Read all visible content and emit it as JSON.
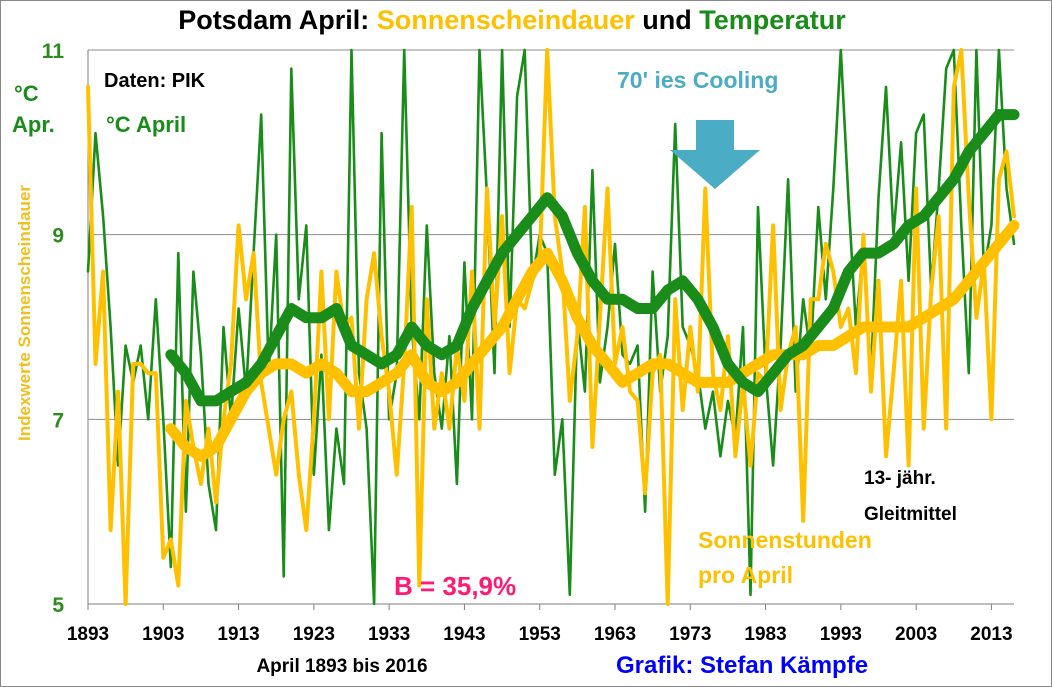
{
  "colors": {
    "temperature": "#198c19",
    "sunshine": "#ffc000",
    "cooling_text": "#4bacc6",
    "cooling_arrow": "#4bacc6",
    "b_text": "#ff1a75",
    "credit_text": "#0000ff",
    "ytick": "#2e8b1e",
    "ylabel": "#f0c01e"
  },
  "chart_data": {
    "type": "line",
    "title_parts": [
      {
        "text": "Potsdam April: ",
        "color": "#000000"
      },
      {
        "text": "Sonnenscheindauer",
        "color": "#ffc000"
      },
      {
        "text": " und ",
        "color": "#000000"
      },
      {
        "text": "Temperatur",
        "color": "#198c19"
      }
    ],
    "ylabel": "Indexwerte Sonnenscheindauer",
    "xlabel": "April 1893 bis 2016",
    "xlim": [
      1893,
      2016
    ],
    "ylim": [
      5,
      11
    ],
    "xticks": [
      1893,
      1903,
      1913,
      1923,
      1933,
      1943,
      1953,
      1963,
      1973,
      1983,
      1993,
      2003,
      2013
    ],
    "yticks": [
      5,
      7,
      9,
      11
    ],
    "grid": true,
    "annotations": {
      "data_source": "Daten: PIK",
      "unit_short": "°C\nApr.",
      "temp_label": "°C April",
      "cooling": "70' ies Cooling",
      "smoothing": "13- jähr.\nGleitmittel",
      "sunshine_label": "Sonnenstunden\npro April",
      "b_value": "B = 35,9%",
      "credit": "Grafik: Stefan Kämpfe"
    },
    "series": [
      {
        "name": "°C April",
        "kind": "raw",
        "color": "#198c19",
        "x": [
          1893,
          1894,
          1895,
          1896,
          1897,
          1898,
          1899,
          1900,
          1901,
          1902,
          1903,
          1904,
          1905,
          1906,
          1907,
          1908,
          1909,
          1910,
          1911,
          1912,
          1913,
          1914,
          1915,
          1916,
          1917,
          1918,
          1919,
          1920,
          1921,
          1922,
          1923,
          1924,
          1925,
          1926,
          1927,
          1928,
          1929,
          1930,
          1931,
          1932,
          1933,
          1934,
          1935,
          1936,
          1937,
          1938,
          1939,
          1940,
          1941,
          1942,
          1943,
          1944,
          1945,
          1946,
          1947,
          1948,
          1949,
          1950,
          1951,
          1952,
          1953,
          1954,
          1955,
          1956,
          1957,
          1958,
          1959,
          1960,
          1961,
          1962,
          1963,
          1964,
          1965,
          1966,
          1967,
          1968,
          1969,
          1970,
          1971,
          1972,
          1973,
          1974,
          1975,
          1976,
          1977,
          1978,
          1979,
          1980,
          1981,
          1982,
          1983,
          1984,
          1985,
          1986,
          1987,
          1988,
          1989,
          1990,
          1991,
          1992,
          1993,
          1994,
          1995,
          1996,
          1997,
          1998,
          1999,
          2000,
          2001,
          2002,
          2003,
          2004,
          2005,
          2006,
          2007,
          2008,
          2009,
          2010,
          2011,
          2012,
          2013,
          2014,
          2015,
          2016
        ],
        "values": [
          8.6,
          10.1,
          9.2,
          8.0,
          6.5,
          7.8,
          7.4,
          7.8,
          7.0,
          8.3,
          7.0,
          5.4,
          8.8,
          6.0,
          8.6,
          7.7,
          6.3,
          5.8,
          8.0,
          7.0,
          8.2,
          7.3,
          8.8,
          10.3,
          7.5,
          9.0,
          5.3,
          10.8,
          8.3,
          9.1,
          6.4,
          7.7,
          5.8,
          6.9,
          6.3,
          11.0,
          7.5,
          6.9,
          5.0,
          10.1,
          7.0,
          7.5,
          11.0,
          8.0,
          7.0,
          9.1,
          7.5,
          6.9,
          7.9,
          6.3,
          8.7,
          7.0,
          11.0,
          9.4,
          7.5,
          11.0,
          8.0,
          10.5,
          11.0,
          8.5,
          9.0,
          8.8,
          6.4,
          7.0,
          5.1,
          8.1,
          7.3,
          9.7,
          7.4,
          8.0,
          8.9,
          7.7,
          7.6,
          7.8,
          6.0,
          8.6,
          7.3,
          7.9,
          10.2,
          8.0,
          7.8,
          7.5,
          6.9,
          7.3,
          6.6,
          7.2,
          6.8,
          8.0,
          5.1,
          9.3,
          7.5,
          6.5,
          7.8,
          9.6,
          7.3,
          8.3,
          7.7,
          9.3,
          8.3,
          9.5,
          11.0,
          9.4,
          8.0,
          8.9,
          7.5,
          9.4,
          10.6,
          9.0,
          10.0,
          8.5,
          10.1,
          10.3,
          8.4,
          9.5,
          10.8,
          11.0,
          9.1,
          7.5,
          11.0,
          8.6,
          9.1,
          11.0,
          9.5,
          8.9
        ]
      },
      {
        "name": "Sonnenstunden pro April",
        "kind": "raw",
        "color": "#ffc000",
        "x": [
          1893,
          1894,
          1895,
          1896,
          1897,
          1898,
          1899,
          1900,
          1901,
          1902,
          1903,
          1904,
          1905,
          1906,
          1907,
          1908,
          1909,
          1910,
          1911,
          1912,
          1913,
          1914,
          1915,
          1916,
          1917,
          1918,
          1919,
          1920,
          1921,
          1922,
          1923,
          1924,
          1925,
          1926,
          1927,
          1928,
          1929,
          1930,
          1931,
          1932,
          1933,
          1934,
          1935,
          1936,
          1937,
          1938,
          1939,
          1940,
          1941,
          1942,
          1943,
          1944,
          1945,
          1946,
          1947,
          1948,
          1949,
          1950,
          1951,
          1952,
          1953,
          1954,
          1955,
          1956,
          1957,
          1958,
          1959,
          1960,
          1961,
          1962,
          1963,
          1964,
          1965,
          1966,
          1967,
          1968,
          1969,
          1970,
          1971,
          1972,
          1973,
          1974,
          1975,
          1976,
          1977,
          1978,
          1979,
          1980,
          1981,
          1982,
          1983,
          1984,
          1985,
          1986,
          1987,
          1988,
          1989,
          1990,
          1991,
          1992,
          1993,
          1994,
          1995,
          1996,
          1997,
          1998,
          1999,
          2000,
          2001,
          2002,
          2003,
          2004,
          2005,
          2006,
          2007,
          2008,
          2009,
          2010,
          2011,
          2012,
          2013,
          2014,
          2015,
          2016
        ],
        "values": [
          10.6,
          7.6,
          8.6,
          5.8,
          7.3,
          5.0,
          7.6,
          7.6,
          7.5,
          7.5,
          5.5,
          5.7,
          5.2,
          7.2,
          6.7,
          6.3,
          6.9,
          6.1,
          7.0,
          7.6,
          9.1,
          8.3,
          8.8,
          7.4,
          6.9,
          6.4,
          7.0,
          7.3,
          6.4,
          5.8,
          7.0,
          8.6,
          7.0,
          8.6,
          8.0,
          8.1,
          6.9,
          8.3,
          8.8,
          7.9,
          7.3,
          6.4,
          7.6,
          9.3,
          5.2,
          8.3,
          6.9,
          7.5,
          6.9,
          7.8,
          7.2,
          8.6,
          6.9,
          9.5,
          8.0,
          9.2,
          7.5,
          8.3,
          8.2,
          8.5,
          8.7,
          11.0,
          9.2,
          8.6,
          7.2,
          7.9,
          9.3,
          6.7,
          8.1,
          9.5,
          7.6,
          8.0,
          7.3,
          7.2,
          6.2,
          7.5,
          7.7,
          5.0,
          8.3,
          7.1,
          8.0,
          7.3,
          9.5,
          7.5,
          7.1,
          7.9,
          6.6,
          7.4,
          6.5,
          7.5,
          7.4,
          9.1,
          7.1,
          7.7,
          8.0,
          5.9,
          8.3,
          8.3,
          8.9,
          8.6,
          8.0,
          8.2,
          7.5,
          9.0,
          7.3,
          8.5,
          6.6,
          7.5,
          8.5,
          6.5,
          9.5,
          6.9,
          8.4,
          9.2,
          6.9,
          10.6,
          11.0,
          9.4,
          8.1,
          8.7,
          7.0,
          9.6,
          9.9,
          9.2
        ]
      },
      {
        "name": "13- jähr. Gleitmittel Temperatur",
        "kind": "smooth",
        "color": "#198c19",
        "x": [
          1904,
          1906,
          1908,
          1910,
          1912,
          1914,
          1916,
          1918,
          1920,
          1922,
          1924,
          1926,
          1928,
          1930,
          1932,
          1934,
          1936,
          1938,
          1940,
          1942,
          1944,
          1946,
          1948,
          1950,
          1952,
          1954,
          1956,
          1958,
          1960,
          1962,
          1964,
          1966,
          1968,
          1970,
          1972,
          1974,
          1976,
          1978,
          1980,
          1982,
          1984,
          1986,
          1988,
          1990,
          1992,
          1994,
          1996,
          1998,
          2000,
          2002,
          2004,
          2006,
          2008,
          2010,
          2012,
          2014,
          2016
        ],
        "values": [
          7.7,
          7.5,
          7.2,
          7.2,
          7.3,
          7.4,
          7.6,
          7.9,
          8.2,
          8.1,
          8.1,
          8.2,
          7.8,
          7.7,
          7.6,
          7.7,
          8.0,
          7.8,
          7.7,
          7.8,
          8.2,
          8.5,
          8.8,
          9.0,
          9.2,
          9.4,
          9.2,
          8.8,
          8.5,
          8.3,
          8.3,
          8.2,
          8.2,
          8.4,
          8.5,
          8.3,
          8.0,
          7.6,
          7.4,
          7.3,
          7.5,
          7.7,
          7.8,
          8.0,
          8.2,
          8.6,
          8.8,
          8.8,
          8.9,
          9.1,
          9.2,
          9.4,
          9.6,
          9.9,
          10.1,
          10.3,
          10.3
        ]
      },
      {
        "name": "13- jähr. Gleitmittel Sonnenscheindauer",
        "kind": "smooth",
        "color": "#ffc000",
        "x": [
          1904,
          1906,
          1908,
          1910,
          1912,
          1914,
          1916,
          1918,
          1920,
          1922,
          1924,
          1926,
          1928,
          1930,
          1932,
          1934,
          1936,
          1938,
          1940,
          1942,
          1944,
          1946,
          1948,
          1950,
          1952,
          1954,
          1956,
          1958,
          1960,
          1962,
          1964,
          1966,
          1968,
          1970,
          1972,
          1974,
          1976,
          1978,
          1980,
          1982,
          1984,
          1986,
          1988,
          1990,
          1992,
          1994,
          1996,
          1998,
          2000,
          2002,
          2004,
          2006,
          2008,
          2010,
          2012,
          2014,
          2016
        ],
        "values": [
          6.9,
          6.7,
          6.6,
          6.7,
          7.0,
          7.3,
          7.5,
          7.6,
          7.6,
          7.5,
          7.6,
          7.5,
          7.3,
          7.3,
          7.4,
          7.5,
          7.7,
          7.4,
          7.3,
          7.4,
          7.6,
          7.8,
          8.0,
          8.3,
          8.6,
          8.8,
          8.5,
          8.1,
          7.8,
          7.6,
          7.4,
          7.5,
          7.6,
          7.6,
          7.5,
          7.4,
          7.4,
          7.4,
          7.5,
          7.6,
          7.7,
          7.7,
          7.7,
          7.8,
          7.8,
          7.9,
          8.0,
          8.0,
          8.0,
          8.0,
          8.1,
          8.2,
          8.3,
          8.5,
          8.7,
          8.9,
          9.1
        ]
      }
    ]
  }
}
